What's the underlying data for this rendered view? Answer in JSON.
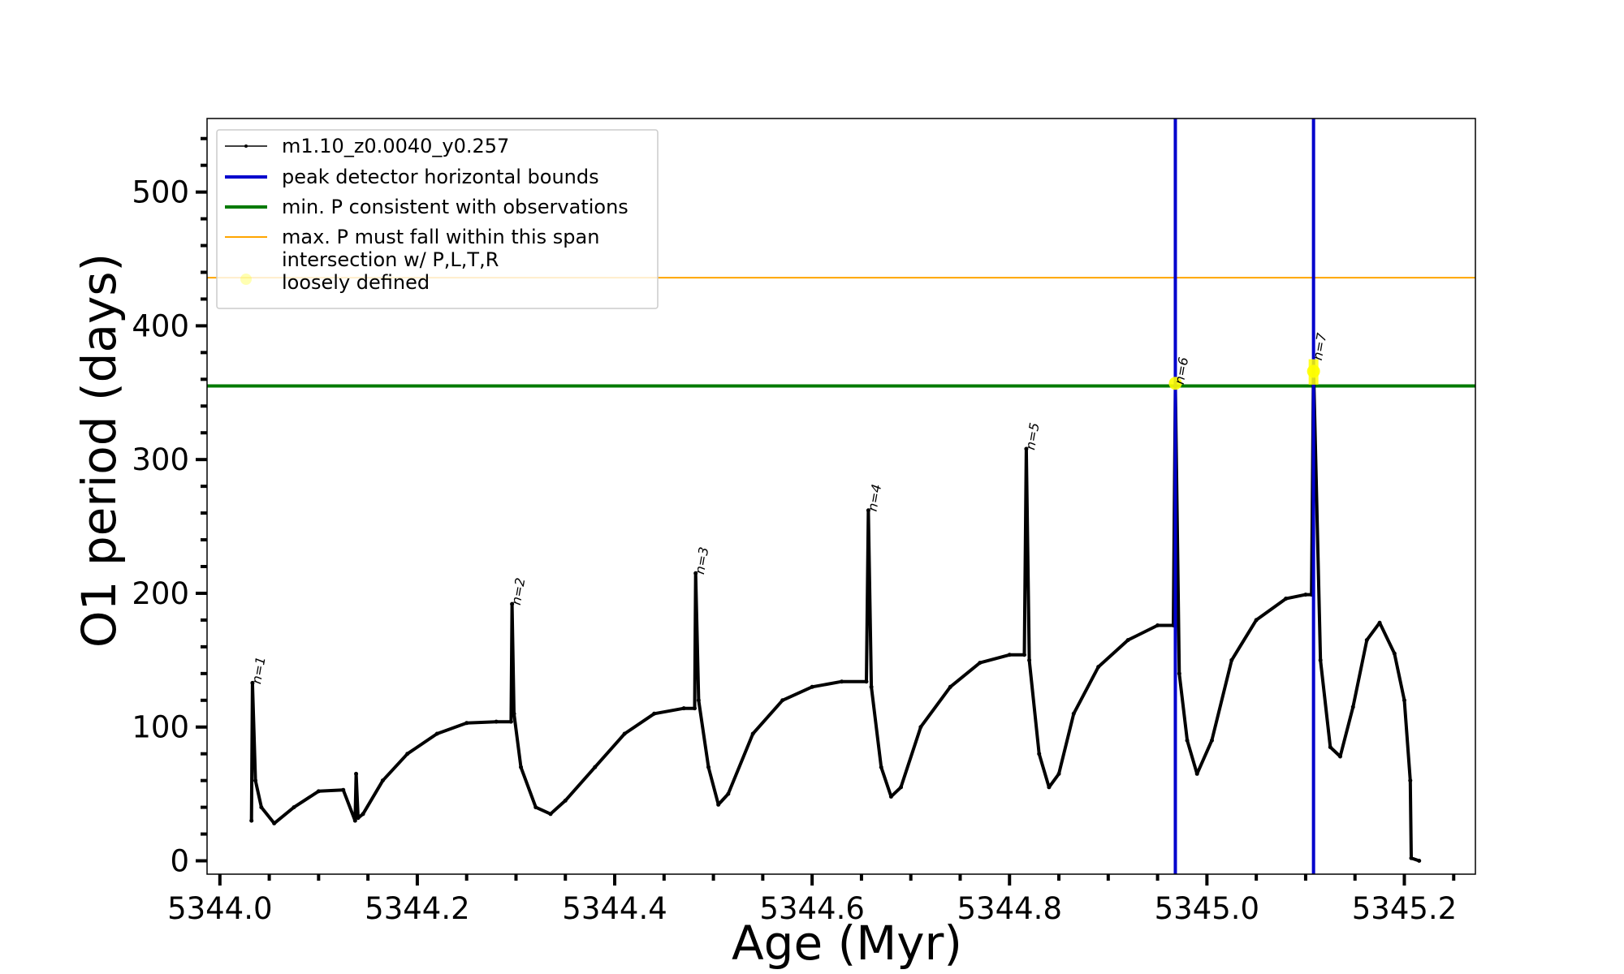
{
  "chart_data": {
    "type": "line",
    "title": "",
    "xlabel": "Age (Myr)",
    "ylabel": "O1 period (days)",
    "xlim": [
      5343.987,
      5345.272
    ],
    "ylim": [
      -10,
      555
    ],
    "xticks": [
      5344.0,
      5344.2,
      5344.4,
      5344.6,
      5344.8,
      5345.0,
      5345.2
    ],
    "xtick_labels": [
      "5344.0",
      "5344.2",
      "5344.4",
      "5344.6",
      "5344.8",
      "5345.0",
      "5345.2"
    ],
    "yticks": [
      0,
      100,
      200,
      300,
      400,
      500
    ],
    "ytick_labels": [
      "0",
      "100",
      "200",
      "300",
      "400",
      "500"
    ],
    "grid": false,
    "legend_position": "upper-left",
    "series": [
      {
        "name": "m1.10_z0.0040_y0.257",
        "color": "#000000",
        "style": "line with small point markers",
        "x": [
          5344.032,
          5344.033,
          5344.036,
          5344.042,
          5344.055,
          5344.075,
          5344.1,
          5344.125,
          5344.137,
          5344.138,
          5344.14,
          5344.145,
          5344.165,
          5344.19,
          5344.22,
          5344.25,
          5344.28,
          5344.295,
          5344.296,
          5344.298,
          5344.305,
          5344.32,
          5344.335,
          5344.35,
          5344.38,
          5344.41,
          5344.44,
          5344.47,
          5344.481,
          5344.482,
          5344.485,
          5344.495,
          5344.505,
          5344.515,
          5344.54,
          5344.57,
          5344.6,
          5344.63,
          5344.655,
          5344.657,
          5344.66,
          5344.67,
          5344.68,
          5344.69,
          5344.71,
          5344.74,
          5344.77,
          5344.8,
          5344.815,
          5344.817,
          5344.82,
          5344.83,
          5344.84,
          5344.85,
          5344.865,
          5344.89,
          5344.92,
          5344.95,
          5344.966,
          5344.968,
          5344.972,
          5344.98,
          5344.99,
          5345.005,
          5345.025,
          5345.05,
          5345.08,
          5345.1,
          5345.106,
          5345.108,
          5345.115,
          5345.125,
          5345.135,
          5345.148,
          5345.162,
          5345.175,
          5345.19,
          5345.2,
          5345.206,
          5345.207,
          5345.215
        ],
        "y": [
          30,
          133,
          60,
          40,
          28,
          40,
          52,
          53,
          30,
          65,
          32,
          35,
          60,
          80,
          95,
          103,
          104,
          104,
          192,
          110,
          70,
          40,
          35,
          45,
          70,
          95,
          110,
          114,
          114,
          215,
          120,
          70,
          42,
          50,
          95,
          120,
          130,
          134,
          134,
          262,
          130,
          70,
          48,
          55,
          100,
          130,
          148,
          154,
          154,
          308,
          150,
          80,
          55,
          65,
          110,
          145,
          165,
          176,
          176,
          355,
          140,
          90,
          65,
          90,
          150,
          180,
          196,
          199,
          199,
          370,
          150,
          85,
          78,
          115,
          165,
          178,
          155,
          120,
          60,
          2,
          0
        ]
      }
    ],
    "vertical_lines": {
      "name": "peak detector horizontal bounds",
      "color": "#0000cd",
      "x": [
        5344.968,
        5345.108
      ]
    },
    "horizontal_lines": [
      {
        "name": "min. P consistent with observations",
        "color": "#007a00",
        "y": 355
      },
      {
        "name": "max. P must fall within this span",
        "color": "#ffa500",
        "y": 436
      }
    ],
    "intersection_markers": {
      "name": "intersection w/ P,L,T,R loosely defined",
      "color": "#ffff00",
      "points": [
        {
          "x": 5344.968,
          "y": 357
        },
        {
          "x": 5345.108,
          "y": 366
        }
      ]
    },
    "peak_annotations": [
      {
        "label": "n=1",
        "x": 5344.033,
        "y": 133
      },
      {
        "label": "n=2",
        "x": 5344.296,
        "y": 192
      },
      {
        "label": "n=3",
        "x": 5344.482,
        "y": 215
      },
      {
        "label": "n=4",
        "x": 5344.657,
        "y": 262
      },
      {
        "label": "n=5",
        "x": 5344.817,
        "y": 308
      },
      {
        "label": "n=6",
        "x": 5344.968,
        "y": 357
      },
      {
        "label": "n=7",
        "x": 5345.108,
        "y": 375
      }
    ]
  },
  "legend": {
    "items": [
      {
        "label": "m1.10_z0.0040_y0.257",
        "color": "#000000",
        "kind": "line-marker"
      },
      {
        "label": "peak detector horizontal bounds",
        "color": "#0000cd",
        "kind": "thick-line"
      },
      {
        "label": "min. P consistent with observations",
        "color": "#007a00",
        "kind": "thick-line"
      },
      {
        "label": "max. P must fall within this span",
        "color": "#ffa500",
        "kind": "thin-line"
      },
      {
        "label": "intersection w/ P,L,T,R",
        "label2": "loosely defined",
        "color": "#ffff00",
        "kind": "marker"
      }
    ]
  }
}
